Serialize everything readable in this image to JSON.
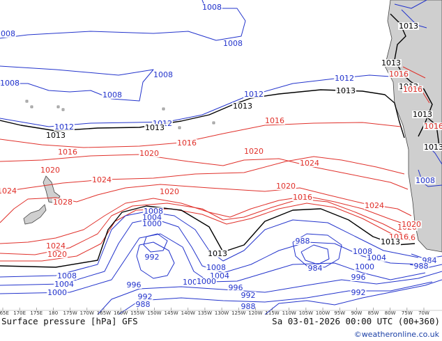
{
  "map": {
    "title": "Surface pressure [hPa] GFS",
    "valid_time": "Sa 03-01-2026 00:00 UTC (00+360)",
    "credit": "©weatheronline.co.uk",
    "colors": {
      "ocean": "#ffffff",
      "land": "#cfcfcf",
      "high_isobar": "#e0302a",
      "low_isobar": "#2233cc",
      "reference_isobar": "#000000",
      "coast": "#444444"
    },
    "longitude_ticks": [
      "165E",
      "170E",
      "175E",
      "180",
      "175W",
      "170W",
      "165W",
      "160W",
      "155W",
      "150W",
      "145W",
      "140W",
      "135W",
      "130W",
      "125W",
      "120W",
      "115W",
      "110W",
      "105W",
      "100W",
      "95W",
      "90W",
      "85W",
      "80W",
      "75W",
      "70W"
    ],
    "isobar_labels": [
      {
        "value": "1008",
        "kind": "low"
      },
      {
        "value": "1008",
        "kind": "low"
      },
      {
        "value": "1008",
        "kind": "low"
      },
      {
        "value": "1008",
        "kind": "low"
      },
      {
        "value": "1008",
        "kind": "low"
      },
      {
        "value": "1008",
        "kind": "low"
      },
      {
        "value": "1012",
        "kind": "low"
      },
      {
        "value": "1012",
        "kind": "low"
      },
      {
        "value": "1012",
        "kind": "low"
      },
      {
        "value": "1012",
        "kind": "low"
      },
      {
        "value": "1013",
        "kind": "ref"
      },
      {
        "value": "1013",
        "kind": "ref"
      },
      {
        "value": "1013",
        "kind": "ref"
      },
      {
        "value": "1013",
        "kind": "ref"
      },
      {
        "value": "1013",
        "kind": "ref"
      },
      {
        "value": "1013",
        "kind": "ref"
      },
      {
        "value": "1013",
        "kind": "ref"
      },
      {
        "value": "1013",
        "kind": "ref"
      },
      {
        "value": "1013",
        "kind": "ref"
      },
      {
        "value": "1013",
        "kind": "ref"
      },
      {
        "value": "1013",
        "kind": "ref"
      },
      {
        "value": "1016",
        "kind": "high"
      },
      {
        "value": "1016",
        "kind": "high"
      },
      {
        "value": "1016",
        "kind": "high"
      },
      {
        "value": "1016",
        "kind": "high"
      },
      {
        "value": "1016",
        "kind": "high"
      },
      {
        "value": "1016",
        "kind": "high"
      },
      {
        "value": "1016",
        "kind": "high"
      },
      {
        "value": "1016",
        "kind": "high"
      },
      {
        "value": "1020",
        "kind": "high"
      },
      {
        "value": "1020",
        "kind": "high"
      },
      {
        "value": "1020",
        "kind": "high"
      },
      {
        "value": "1020",
        "kind": "high"
      },
      {
        "value": "1020",
        "kind": "high"
      },
      {
        "value": "1020",
        "kind": "high"
      },
      {
        "value": "1020",
        "kind": "high"
      },
      {
        "value": "1024",
        "kind": "high"
      },
      {
        "value": "1024",
        "kind": "high"
      },
      {
        "value": "1024",
        "kind": "high"
      },
      {
        "value": "1024",
        "kind": "high"
      },
      {
        "value": "1024",
        "kind": "high"
      },
      {
        "value": "1028",
        "kind": "high"
      },
      {
        "value": "1008",
        "kind": "low"
      },
      {
        "value": "1004",
        "kind": "low"
      },
      {
        "value": "1000",
        "kind": "low"
      },
      {
        "value": "992",
        "kind": "low"
      },
      {
        "value": "1008",
        "kind": "low"
      },
      {
        "value": "1008",
        "kind": "low"
      },
      {
        "value": "1004",
        "kind": "low"
      },
      {
        "value": "1000",
        "kind": "low"
      },
      {
        "value": "1008",
        "kind": "low"
      },
      {
        "value": "1004",
        "kind": "low"
      },
      {
        "value": "1000",
        "kind": "low"
      },
      {
        "value": "996",
        "kind": "low"
      },
      {
        "value": "992",
        "kind": "low"
      },
      {
        "value": "988",
        "kind": "low"
      },
      {
        "value": "996",
        "kind": "low"
      },
      {
        "value": "992",
        "kind": "low"
      },
      {
        "value": "988",
        "kind": "low"
      },
      {
        "value": "988",
        "kind": "low"
      },
      {
        "value": "984",
        "kind": "low"
      },
      {
        "value": "1008",
        "kind": "low"
      },
      {
        "value": "1004",
        "kind": "low"
      },
      {
        "value": "1000",
        "kind": "low"
      },
      {
        "value": "996",
        "kind": "low"
      },
      {
        "value": "992",
        "kind": "low"
      },
      {
        "value": "1008",
        "kind": "low"
      },
      {
        "value": "984",
        "kind": "low"
      },
      {
        "value": "988",
        "kind": "low"
      },
      {
        "value": "1020",
        "kind": "high"
      },
      {
        "value": "1016",
        "kind": "high"
      },
      {
        "value": "1013",
        "kind": "ref"
      }
    ]
  }
}
